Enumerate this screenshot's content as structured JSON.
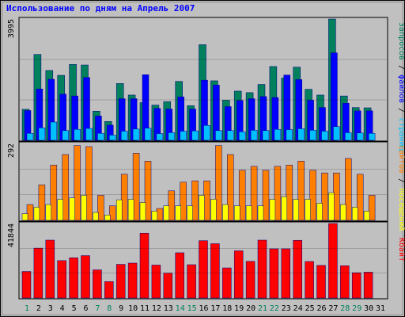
{
  "chart_data": {
    "type": "bar",
    "title": "Использование по дням на Апрель 2007",
    "categories": [
      "1",
      "2",
      "3",
      "4",
      "5",
      "6",
      "7",
      "8",
      "9",
      "10",
      "11",
      "12",
      "13",
      "14",
      "15",
      "16",
      "17",
      "18",
      "19",
      "20",
      "21",
      "22",
      "23",
      "24",
      "25",
      "26",
      "27",
      "28",
      "29",
      "30",
      "31"
    ],
    "weekend_days": [
      "1",
      "7",
      "8",
      "14",
      "15",
      "21",
      "22",
      "28",
      "29"
    ],
    "panels": [
      {
        "name": "top",
        "ymax": 3995,
        "ymax_label": "3995",
        "right_label": {
          "parts": [
            "запросов",
            "/",
            "файлов",
            "/",
            "страниц"
          ],
          "colors": [
            "#00805c",
            "#000000",
            "#0000ff",
            "#000000",
            "#00c0ff"
          ]
        },
        "series": [
          {
            "key": "hits",
            "color": "#00805c",
            "values": [
              1020,
              2830,
              2300,
              2140,
              2500,
              2480,
              960,
              620,
              1870,
              1490,
              1240,
              1160,
              1270,
              1940,
              1140,
              3150,
              1960,
              1320,
              1620,
              1570,
              1840,
              2430,
              2050,
              2410,
              1680,
              1490,
              3995,
              1460,
              1080,
              1070,
              0
            ]
          },
          {
            "key": "files",
            "color": "#0000ff",
            "values": [
              980,
              1690,
              2010,
              1520,
              1460,
              2070,
              800,
              500,
              1370,
              1370,
              2160,
              1050,
              1030,
              1430,
              1030,
              1980,
              1820,
              1110,
              1310,
              1370,
              1440,
              1410,
              2150,
              2000,
              1320,
              1080,
              2880,
              1220,
              970,
              970,
              0
            ]
          },
          {
            "key": "pages",
            "color": "#00c0ff",
            "values": [
              230,
              410,
              600,
              320,
              360,
              390,
              230,
              170,
              300,
              370,
              400,
              220,
              250,
              300,
              310,
              490,
              320,
              320,
              280,
              330,
              320,
              360,
              350,
              380,
              330,
              300,
              450,
              250,
              240,
              230,
              0
            ]
          }
        ]
      },
      {
        "name": "middle",
        "ymax": 292,
        "ymax_label": "292",
        "right_label": {
          "parts": [
            "сайтов",
            "/",
            "посещений"
          ],
          "colors": [
            "#ff8000",
            "#000000",
            "#ffff00"
          ]
        },
        "series": [
          {
            "key": "visits",
            "color": "#ff8000",
            "values": [
              60,
              135,
              210,
              250,
              284,
              280,
              95,
              55,
              175,
              255,
              225,
              45,
              112,
              145,
              150,
              150,
              284,
              250,
              190,
              205,
              190,
              205,
              210,
              225,
              190,
              180,
              180,
              235,
              175,
              95,
              0
            ]
          },
          {
            "key": "sites",
            "color": "#ffff00",
            "values": [
              25,
              50,
              60,
              80,
              85,
              95,
              30,
              20,
              78,
              80,
              68,
              35,
              55,
              55,
              55,
              95,
              80,
              60,
              55,
              55,
              55,
              80,
              90,
              80,
              80,
              65,
              105,
              60,
              50,
              35,
              0
            ]
          }
        ]
      },
      {
        "name": "bottom",
        "ymax": 41844,
        "ymax_label": "41844",
        "right_label": {
          "parts": [
            "Кбайт"
          ],
          "colors": [
            "#ff0000"
          ]
        },
        "series": [
          {
            "key": "kbytes",
            "color": "#ff0000",
            "values": [
              14900,
              28000,
              32500,
              21000,
              22600,
              23800,
              15800,
              9200,
              18900,
              19600,
              36400,
              18500,
              14000,
              25400,
              18700,
              32200,
              30500,
              16900,
              26500,
              20600,
              32500,
              27600,
              27600,
              32400,
              20500,
              18300,
              41844,
              18100,
              14200,
              14500,
              0
            ]
          }
        ]
      }
    ]
  }
}
